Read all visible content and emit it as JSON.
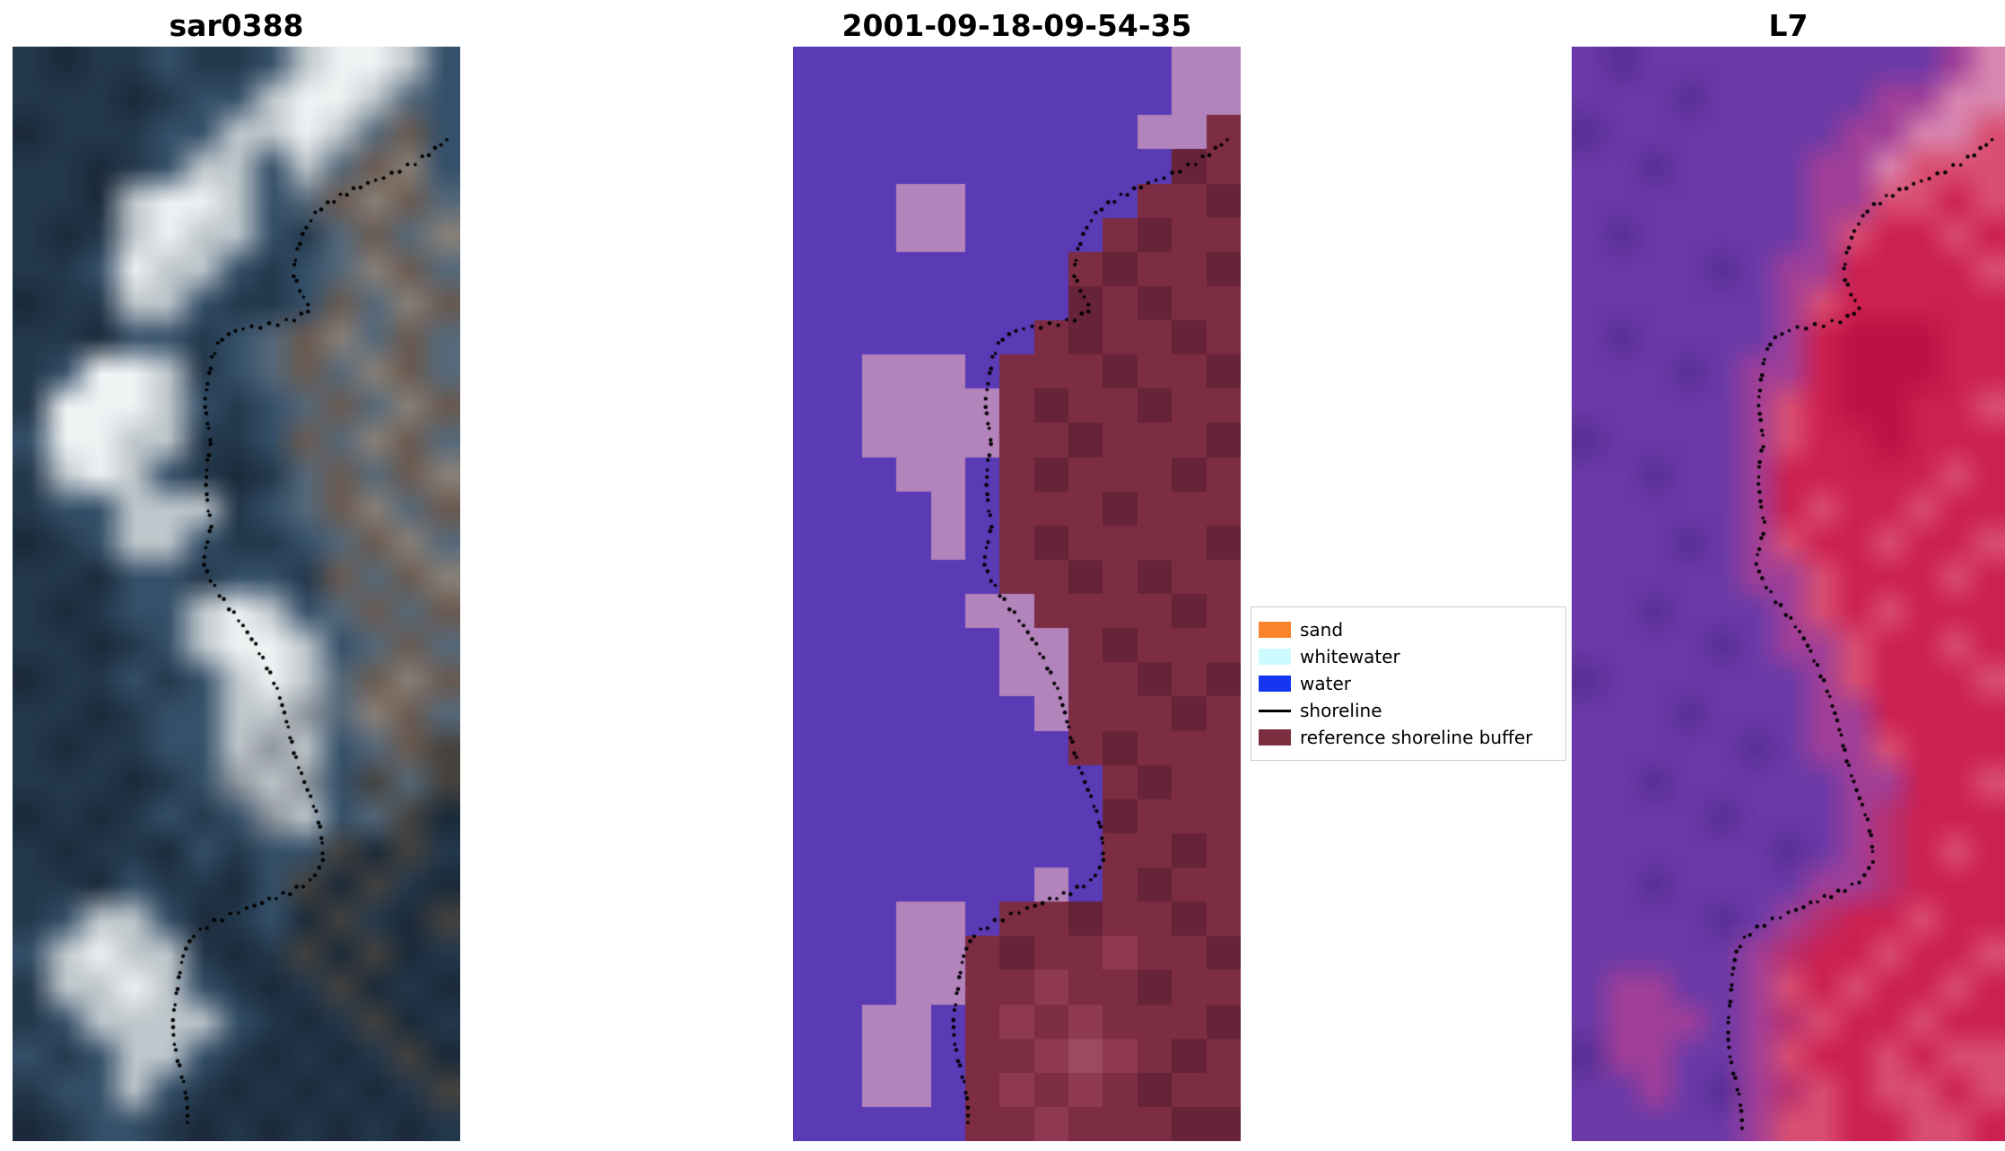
{
  "figure": {
    "background": "#ffffff",
    "shoreline": {
      "color": "#000000",
      "points": [
        [
          0.97,
          0.085
        ],
        [
          0.9,
          0.105
        ],
        [
          0.84,
          0.118
        ],
        [
          0.78,
          0.128
        ],
        [
          0.725,
          0.138
        ],
        [
          0.675,
          0.15
        ],
        [
          0.65,
          0.168
        ],
        [
          0.638,
          0.188
        ],
        [
          0.632,
          0.208
        ],
        [
          0.645,
          0.225
        ],
        [
          0.662,
          0.24
        ],
        [
          0.62,
          0.25
        ],
        [
          0.565,
          0.255
        ],
        [
          0.51,
          0.258
        ],
        [
          0.465,
          0.268
        ],
        [
          0.443,
          0.285
        ],
        [
          0.432,
          0.305
        ],
        [
          0.428,
          0.325
        ],
        [
          0.44,
          0.345
        ],
        [
          0.448,
          0.362
        ],
        [
          0.435,
          0.38
        ],
        [
          0.428,
          0.4
        ],
        [
          0.432,
          0.42
        ],
        [
          0.445,
          0.438
        ],
        [
          0.438,
          0.455
        ],
        [
          0.43,
          0.472
        ],
        [
          0.445,
          0.49
        ],
        [
          0.47,
          0.508
        ],
        [
          0.505,
          0.525
        ],
        [
          0.545,
          0.545
        ],
        [
          0.57,
          0.565
        ],
        [
          0.588,
          0.585
        ],
        [
          0.6,
          0.605
        ],
        [
          0.615,
          0.625
        ],
        [
          0.632,
          0.645
        ],
        [
          0.65,
          0.665
        ],
        [
          0.665,
          0.685
        ],
        [
          0.678,
          0.705
        ],
        [
          0.688,
          0.725
        ],
        [
          0.695,
          0.745
        ],
        [
          0.672,
          0.762
        ],
        [
          0.625,
          0.772
        ],
        [
          0.565,
          0.78
        ],
        [
          0.505,
          0.79
        ],
        [
          0.452,
          0.8
        ],
        [
          0.408,
          0.812
        ],
        [
          0.382,
          0.828
        ],
        [
          0.368,
          0.848
        ],
        [
          0.362,
          0.868
        ],
        [
          0.36,
          0.888
        ],
        [
          0.365,
          0.908
        ],
        [
          0.372,
          0.928
        ],
        [
          0.38,
          0.948
        ],
        [
          0.386,
          0.968
        ],
        [
          0.39,
          0.988
        ]
      ]
    },
    "panels": [
      {
        "title": "sar0388",
        "render_mode": "smooth",
        "palette": {
          "a": "#24384c",
          "b": "#1a2a3a",
          "c": "#35506a",
          "d": "#f0f3f4",
          "e": "#bfc7cc",
          "f": "#8d949b",
          "g": "#6a5a50",
          "h": "#46423e",
          "i": "#55697b",
          "j": "#8b8178"
        },
        "rows": [
          "abaacaaceddec",
          "aaabacceddeic",
          "baaacceedeigc",
          "aabaceeceigjc",
          "aabeddecigjgi",
          "abaedeecaigij",
          "aacdeecacijgi",
          "baaeecaacgijg",
          "aabccacigjigi",
          "acddeacigijgi",
          "adddecacigijg",
          "cddeeaacgijgi",
          "aedecabaigigj",
          "acceeeacigjig",
          "baceecaacigji",
          "aabccaccagigj",
          "abaccedecigig",
          "aabaceddecigi",
          "baacacedeigjg",
          "aabacceefijgi",
          "abaaccefecigh",
          "aaabacfefchih",
          "babacacfecihb",
          "abaabcacchbha",
          "aabcaabchbhab",
          "aceecbacbhabh",
          "cedeeabahbhba",
          "aeedecabahbab",
          "aceeeecabahba",
          "caceecababahb",
          "accecabababah",
          "baccababababa"
        ]
      },
      {
        "title": "2001-09-18-09-54-35",
        "render_mode": "pixel",
        "palette": {
          "P": "#5a3ab5",
          "K": "#b383bb",
          "M": "#7c2d44",
          "N": "#672338",
          "O": "#8f3a52",
          "Q": "#9c4a62"
        },
        "rows": [
          "PPPPPPPPPPPKK",
          "PPPPPPPPPPPKK",
          "PPPPPPPPPPKKM",
          "PPPPPPPPPPPNM",
          "PPPKKPPPPPMMN",
          "PPPKKPPPPMNMM",
          "PPPPPPPPMNMMN",
          "PPPPPPPPNMNMM",
          "PPPPPPPMNMMNM",
          "PPKKKPMMMNMMN",
          "PPKKKKMNMMNMM",
          "PPKKKKMMNMMMN",
          "PPPKKPMNMMMNM",
          "PPPPKPMMMNMMM",
          "PPPPKPMNMMMMN",
          "PPPPPPMMNMNMM",
          "PPPPPKKMMMMNM",
          "PPPPPPKKMNMMM",
          "PPPPPPKKMMNMN",
          "PPPPPPPKMMMNM",
          "PPPPPPPPMNMMM",
          "PPPPPPPPPMNMM",
          "PPPPPPPPPNMMM",
          "PPPPPPPPPMMNM",
          "PPPPPPPKPMNMM",
          "PPPKKPMMNMMNM",
          "PPPKKMNMMOMMN",
          "PPPKKMMOMMNMM",
          "PPKKPMOMOMMMN",
          "PPKKPMMOQOMNM",
          "PPKKPMOMOMNMM",
          "PPPPPMMOMMMNN"
        ]
      },
      {
        "title": "L7",
        "render_mode": "smooth",
        "palette": {
          "U": "#6b3aa8",
          "V": "#5a2f96",
          "W": "#a03f98",
          "R": "#cc2050",
          "S": "#d94f72",
          "T": "#d886b0",
          "X": "#b83070",
          "Z": "#bd1045"
        },
        "rows": [
          "UVUUUUUUUUUWT",
          "UUUVUUUUUWWTT",
          "VUUUUUUUWWTTS",
          "UUVUUUUWWTSSS",
          "UUUUUUUWWSSRS",
          "UVUUUUUWSRRSR",
          "UUUUVUWWRRRRS",
          "UUUUUUWSRRRRR",
          "UVUUUUWRZZZRR",
          "UUUVUWWRZZZRR",
          "UUUUUWSRZZRRS",
          "VUUUUWSRRZRRR",
          "UUVUUWRRRRRSR",
          "UUUUUWRSRRSRR",
          "UUUVUWSRRSRRS",
          "UUUUUWWSRRRSR",
          "UUVUUUWSRSRRR",
          "UUUUVUWWSRRSR",
          "VUUUUUUWSRRRS",
          "UUUVUUUWWRRRR",
          "UUUUUVUWWSRRR",
          "UUVUUUUUWWRRS",
          "UUUUVUUUWXRRR",
          "UUUUUUVUWXRSR",
          "UUVUUUUWWXRRR",
          "UUUUVUWXRRSRR",
          "UUUUUWXRRSRRS",
          "UWWUUWSRSRRSR",
          "UWWWUWXSRRSRR",
          "VWWUUWSRRSRSS",
          "UUWUVWXSRSSRS",
          "UUUUUWSSRRSSR"
        ]
      }
    ],
    "legend": {
      "items": [
        {
          "label": "sand",
          "swatch": "patch",
          "color": "#f9822c"
        },
        {
          "label": "whitewater",
          "swatch": "patch",
          "color": "#ccfbff"
        },
        {
          "label": "water",
          "swatch": "patch",
          "color": "#1536f1"
        },
        {
          "label": "shoreline",
          "swatch": "line",
          "color": "#000000"
        },
        {
          "label": "reference shoreline buffer",
          "swatch": "patch",
          "color": "#7c2d3f"
        }
      ]
    }
  }
}
